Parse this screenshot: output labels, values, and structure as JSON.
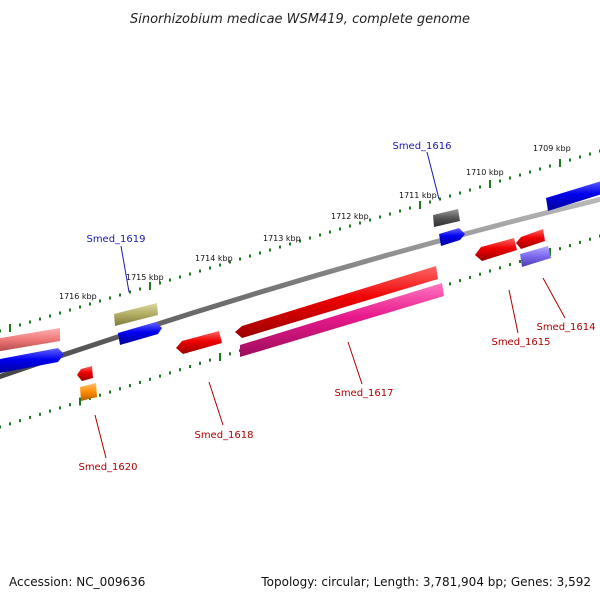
{
  "title": "Sinorhizobium medicae WSM419, complete genome",
  "footer": {
    "accession": "Accession: NC_009636",
    "topology": "Topology: circular; Length: 3,781,904 bp; Genes: 3,592"
  },
  "kbp_labels": [
    "1709 kbp",
    "1710 kbp",
    "1711 kbp",
    "1712 kbp",
    "1713 kbp",
    "1714 kbp",
    "1715 kbp",
    "1716 kbp"
  ],
  "gene_labels": {
    "smed_1614": "Smed_1614",
    "smed_1615": "Smed_1615",
    "smed_1616": "Smed_1616",
    "smed_1617": "Smed_1617",
    "smed_1618": "Smed_1618",
    "smed_1619": "Smed_1619",
    "smed_1620": "Smed_1620"
  },
  "colors": {
    "backbone": "#777777",
    "tick": "#1e7a1e",
    "red": "#ee0000",
    "blue": "#0000ee",
    "olive": "#b0ac62",
    "pink": "#e8198c",
    "salmon": "#ee7777",
    "gray": "#555555",
    "lavender": "#7b68ee",
    "orange": "#ff8c00"
  }
}
